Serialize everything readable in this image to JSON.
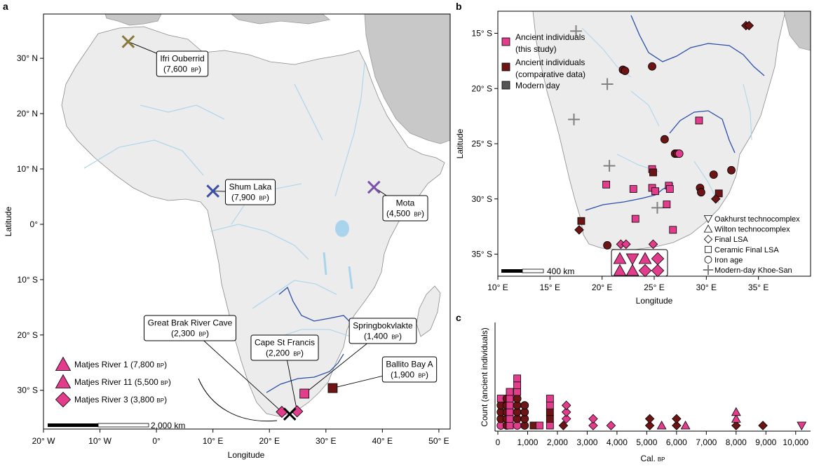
{
  "panels": {
    "a": {
      "letter": "a",
      "xlabel": "Longitude",
      "ylabel": "Latitude",
      "scale_label": "2,000 km"
    },
    "b": {
      "letter": "b",
      "xlabel": "Longitude",
      "ylabel": "Latitude",
      "scale_label": "400 km"
    },
    "c": {
      "letter": "c",
      "xlabel": "Cal.",
      "xlabel_unit": "BP",
      "ylabel": "Count (ancient individuals)"
    }
  },
  "colors": {
    "pink": "#e23c8c",
    "maroon": "#6e1414",
    "brown": "#7a4646",
    "olive": "#8a7a3a",
    "blue": "#3c4ea2",
    "purple": "#7a52a8",
    "gray": "#808080",
    "land": "#ececec",
    "landDark": "#c8c8c8",
    "water": "#a9d4ec",
    "river": "#2a4fa8"
  },
  "chart_data": [
    {
      "panel": "a",
      "type": "scatter",
      "xlabel": "Longitude",
      "ylabel": "Latitude",
      "xlim": [
        -20,
        52
      ],
      "ylim": [
        -37,
        38
      ],
      "xticks": [
        -20,
        -10,
        0,
        10,
        20,
        30,
        40,
        50
      ],
      "xtick_labels": [
        "20° W",
        "10° W",
        "0°",
        "10° E",
        "20° E",
        "30° E",
        "40° E",
        "50° E"
      ],
      "yticks": [
        30,
        20,
        10,
        0,
        -10,
        -20,
        -30
      ],
      "ytick_labels": [
        "30° N",
        "20° N",
        "10° N",
        "0°",
        "10° S",
        "20° S",
        "30° S"
      ],
      "sites": [
        {
          "name": "Ifri Ouberrid",
          "age": "7,600",
          "unit": "BP",
          "lon": -5,
          "lat": 33,
          "marker": "cross",
          "color": "#8a7a3a"
        },
        {
          "name": "Shum Laka",
          "age": "7,900",
          "unit": "BP",
          "lon": 10,
          "lat": 6,
          "marker": "cross",
          "color": "#3c4ea2"
        },
        {
          "name": "Mota",
          "age": "4,500",
          "unit": "BP",
          "lon": 38.5,
          "lat": 6.7,
          "marker": "cross",
          "color": "#7a52a8"
        },
        {
          "name": "Great Brak River Cave",
          "age": "2,300",
          "unit": "BP",
          "lon": 22.2,
          "lat": -33.9,
          "marker": "diamond",
          "color": "#e23c8c"
        },
        {
          "name": "Cape St Francis",
          "age": "2,200",
          "unit": "BP",
          "lon": 24.9,
          "lat": -33.8,
          "marker": "diamond",
          "color": "#e23c8c"
        },
        {
          "name": "Springbokvlakte",
          "age": "1,400",
          "unit": "BP",
          "lon": 26.2,
          "lat": -30.6,
          "marker": "square",
          "color": "#e23c8c"
        },
        {
          "name": "Ballito Bay A",
          "age": "1,900",
          "unit": "BP",
          "lon": 31.2,
          "lat": -29.6,
          "marker": "square",
          "color": "#6e1414"
        }
      ],
      "black_cross": {
        "lon": 23.6,
        "lat": -34.3
      },
      "legend": [
        {
          "label": "Matjes River 1 (7,800 ",
          "unit": "BP",
          "close": ")",
          "marker": "triangle"
        },
        {
          "label": "Matjes River 11 (5,500 ",
          "unit": "BP",
          "close": ")",
          "marker": "triangle"
        },
        {
          "label": "Matjes River 3 (3,800 ",
          "unit": "BP",
          "close": ")",
          "marker": "diamond"
        }
      ]
    },
    {
      "panel": "b",
      "type": "scatter",
      "xlabel": "Longitude",
      "ylabel": "Latitude",
      "xlim": [
        10,
        40
      ],
      "ylim": [
        -37,
        -13
      ],
      "xticks": [
        10,
        15,
        20,
        25,
        30,
        35
      ],
      "xtick_labels": [
        "10° E",
        "15° E",
        "20° E",
        "25° E",
        "30° E",
        "35° E"
      ],
      "yticks": [
        -15,
        -20,
        -25,
        -30,
        -35
      ],
      "ytick_labels": [
        "15° S",
        "20° S",
        "25° S",
        "30° S",
        "35° S"
      ],
      "legend_top": [
        {
          "label": "Ancient individuals",
          "label2": "(this study)",
          "color": "#e23c8c"
        },
        {
          "label": "Ancient individuals",
          "label2": "(comparative data)",
          "color": "#6e1414"
        },
        {
          "label": "Modern day",
          "label2": "",
          "color": "#555555"
        }
      ],
      "legend_shapes": [
        {
          "label": "Oakhurst technocomplex",
          "marker": "triangle-down"
        },
        {
          "label": "Wilton technocomplex",
          "marker": "triangle"
        },
        {
          "label": "Final LSA",
          "marker": "diamond"
        },
        {
          "label": "Ceramic Final LSA",
          "marker": "square"
        },
        {
          "label": "Iron age",
          "marker": "circle"
        },
        {
          "label": "Modern-day Khoe-San",
          "marker": "plus"
        }
      ],
      "points": [
        {
          "lon": 17.5,
          "lat": -14.8,
          "marker": "plus",
          "group": "modern"
        },
        {
          "lon": 20.5,
          "lat": -19.6,
          "marker": "plus",
          "group": "modern"
        },
        {
          "lon": 17.3,
          "lat": -22.8,
          "marker": "plus",
          "group": "modern"
        },
        {
          "lon": 20.7,
          "lat": -27.0,
          "marker": "plus",
          "group": "modern"
        },
        {
          "lon": 25.3,
          "lat": -30.8,
          "marker": "plus",
          "group": "modern"
        },
        {
          "lon": 33.8,
          "lat": -14.3,
          "marker": "diamond",
          "group": "comparative"
        },
        {
          "lon": 34.1,
          "lat": -14.3,
          "marker": "diamond",
          "group": "comparative"
        },
        {
          "lon": 22.0,
          "lat": -18.3,
          "marker": "circle",
          "group": "comparative"
        },
        {
          "lon": 22.2,
          "lat": -18.4,
          "marker": "circle",
          "group": "comparative"
        },
        {
          "lon": 24.8,
          "lat": -18.0,
          "marker": "circle",
          "group": "comparative"
        },
        {
          "lon": 29.3,
          "lat": -22.9,
          "marker": "square",
          "group": "study"
        },
        {
          "lon": 26.0,
          "lat": -24.6,
          "marker": "circle",
          "group": "comparative"
        },
        {
          "lon": 27.0,
          "lat": -25.9,
          "marker": "circle",
          "group": "comparative"
        },
        {
          "lon": 27.2,
          "lat": -25.9,
          "marker": "circle",
          "group": "comparative"
        },
        {
          "lon": 27.4,
          "lat": -25.9,
          "marker": "circle",
          "group": "study"
        },
        {
          "lon": 24.8,
          "lat": -27.3,
          "marker": "square",
          "group": "study"
        },
        {
          "lon": 24.9,
          "lat": -27.6,
          "marker": "square",
          "group": "comparative"
        },
        {
          "lon": 32.4,
          "lat": -27.4,
          "marker": "circle",
          "group": "comparative"
        },
        {
          "lon": 30.7,
          "lat": -27.8,
          "marker": "circle",
          "group": "comparative"
        },
        {
          "lon": 20.4,
          "lat": -28.7,
          "marker": "square",
          "group": "study"
        },
        {
          "lon": 23.0,
          "lat": -29.1,
          "marker": "square",
          "group": "study"
        },
        {
          "lon": 24.8,
          "lat": -29.0,
          "marker": "square",
          "group": "study"
        },
        {
          "lon": 25.1,
          "lat": -29.3,
          "marker": "square",
          "group": "study"
        },
        {
          "lon": 26.4,
          "lat": -28.8,
          "marker": "square",
          "group": "study"
        },
        {
          "lon": 26.5,
          "lat": -29.1,
          "marker": "square",
          "group": "study"
        },
        {
          "lon": 29.4,
          "lat": -29.0,
          "marker": "circle",
          "group": "comparative"
        },
        {
          "lon": 29.5,
          "lat": -29.4,
          "marker": "circle",
          "group": "comparative"
        },
        {
          "lon": 31.2,
          "lat": -29.5,
          "marker": "square",
          "group": "comparative"
        },
        {
          "lon": 30.9,
          "lat": -30.0,
          "marker": "diamond",
          "group": "comparative"
        },
        {
          "lon": 26.2,
          "lat": -30.5,
          "marker": "square",
          "group": "study"
        },
        {
          "lon": 23.2,
          "lat": -31.8,
          "marker": "square",
          "group": "study"
        },
        {
          "lon": 18.0,
          "lat": -32.0,
          "marker": "square",
          "group": "comparative"
        },
        {
          "lon": 17.8,
          "lat": -32.8,
          "marker": "diamond",
          "group": "comparative"
        },
        {
          "lon": 26.8,
          "lat": -32.8,
          "marker": "square",
          "group": "study"
        },
        {
          "lon": 20.5,
          "lat": -34.2,
          "marker": "circle",
          "group": "comparative"
        },
        {
          "lon": 21.8,
          "lat": -34.1,
          "marker": "diamond",
          "group": "study"
        },
        {
          "lon": 22.3,
          "lat": -34.1,
          "marker": "diamond",
          "group": "study"
        },
        {
          "lon": 24.9,
          "lat": -34.1,
          "marker": "diamond",
          "group": "study"
        }
      ],
      "matjes_inset": [
        {
          "marker": "triangle",
          "row": 1,
          "col": 1
        },
        {
          "marker": "triangle-down",
          "row": 1,
          "col": 2
        },
        {
          "marker": "triangle",
          "row": 1,
          "col": 3
        },
        {
          "marker": "diamond",
          "row": 1,
          "col": 4
        },
        {
          "marker": "triangle",
          "row": 2,
          "col": 1
        },
        {
          "marker": "triangle",
          "row": 2,
          "col": 2
        },
        {
          "marker": "diamond",
          "row": 2,
          "col": 3
        },
        {
          "marker": "diamond",
          "row": 2,
          "col": 4
        }
      ]
    },
    {
      "panel": "c",
      "type": "scatter",
      "xlabel": "Cal. BP",
      "ylabel": "Count (ancient individuals)",
      "xlim": [
        0,
        10500
      ],
      "xticks": [
        0,
        1000,
        2000,
        3000,
        4000,
        5000,
        6000,
        7000,
        8000,
        9000,
        10000
      ],
      "xtick_labels": [
        "0",
        "1,000",
        "2,000",
        "3,000",
        "4,000",
        "5,000",
        "6,000",
        "7,000",
        "8,000",
        "9,000",
        "10,000"
      ],
      "points": [
        {
          "x": 100,
          "count": 1,
          "marker": "circle",
          "group": "study"
        },
        {
          "x": 100,
          "count": 2,
          "marker": "circle",
          "group": "comparative"
        },
        {
          "x": 100,
          "count": 3,
          "marker": "circle",
          "group": "comparative"
        },
        {
          "x": 100,
          "count": 4,
          "marker": "circle",
          "group": "comparative"
        },
        {
          "x": 100,
          "count": 5,
          "marker": "square",
          "group": "study"
        },
        {
          "x": 300,
          "count": 1,
          "marker": "circle",
          "group": "comparative"
        },
        {
          "x": 300,
          "count": 2,
          "marker": "circle",
          "group": "comparative"
        },
        {
          "x": 300,
          "count": 3,
          "marker": "circle",
          "group": "comparative"
        },
        {
          "x": 300,
          "count": 4,
          "marker": "circle",
          "group": "comparative"
        },
        {
          "x": 300,
          "count": 5,
          "marker": "circle",
          "group": "comparative"
        },
        {
          "x": 400,
          "count": 1,
          "marker": "square",
          "group": "study"
        },
        {
          "x": 400,
          "count": 2,
          "marker": "square",
          "group": "study"
        },
        {
          "x": 400,
          "count": 3,
          "marker": "square",
          "group": "study"
        },
        {
          "x": 400,
          "count": 4,
          "marker": "square",
          "group": "study"
        },
        {
          "x": 400,
          "count": 5,
          "marker": "square",
          "group": "study"
        },
        {
          "x": 400,
          "count": 6,
          "marker": "square",
          "group": "study"
        },
        {
          "x": 650,
          "count": 1,
          "marker": "circle",
          "group": "study"
        },
        {
          "x": 650,
          "count": 2,
          "marker": "circle",
          "group": "comparative"
        },
        {
          "x": 650,
          "count": 3,
          "marker": "circle",
          "group": "comparative"
        },
        {
          "x": 650,
          "count": 4,
          "marker": "circle",
          "group": "comparative"
        },
        {
          "x": 650,
          "count": 5,
          "marker": "circle",
          "group": "comparative"
        },
        {
          "x": 650,
          "count": 6,
          "marker": "square",
          "group": "study"
        },
        {
          "x": 650,
          "count": 7,
          "marker": "square",
          "group": "study"
        },
        {
          "x": 650,
          "count": 8,
          "marker": "square",
          "group": "study"
        },
        {
          "x": 900,
          "count": 1,
          "marker": "circle",
          "group": "comparative"
        },
        {
          "x": 900,
          "count": 2,
          "marker": "circle",
          "group": "comparative"
        },
        {
          "x": 900,
          "count": 3,
          "marker": "circle",
          "group": "comparative"
        },
        {
          "x": 900,
          "count": 4,
          "marker": "circle",
          "group": "comparative"
        },
        {
          "x": 1200,
          "count": 1,
          "marker": "square",
          "group": "comparative"
        },
        {
          "x": 1400,
          "count": 1,
          "marker": "square",
          "group": "study"
        },
        {
          "x": 1750,
          "count": 1,
          "marker": "square",
          "group": "study"
        },
        {
          "x": 1750,
          "count": 2,
          "marker": "square",
          "group": "comparative"
        },
        {
          "x": 1750,
          "count": 3,
          "marker": "square",
          "group": "comparative"
        },
        {
          "x": 1750,
          "count": 4,
          "marker": "square",
          "group": "study"
        },
        {
          "x": 1750,
          "count": 5,
          "marker": "square",
          "group": "study"
        },
        {
          "x": 2200,
          "count": 1,
          "marker": "diamond",
          "group": "comparative"
        },
        {
          "x": 2300,
          "count": 2,
          "marker": "diamond",
          "group": "study"
        },
        {
          "x": 2300,
          "count": 3,
          "marker": "diamond",
          "group": "study"
        },
        {
          "x": 2300,
          "count": 4,
          "marker": "diamond",
          "group": "study"
        },
        {
          "x": 3200,
          "count": 1,
          "marker": "diamond",
          "group": "study"
        },
        {
          "x": 3200,
          "count": 2,
          "marker": "diamond",
          "group": "study"
        },
        {
          "x": 3800,
          "count": 1,
          "marker": "diamond",
          "group": "study"
        },
        {
          "x": 5100,
          "count": 1,
          "marker": "diamond",
          "group": "comparative"
        },
        {
          "x": 5100,
          "count": 2,
          "marker": "diamond",
          "group": "comparative"
        },
        {
          "x": 5500,
          "count": 1,
          "marker": "triangle",
          "group": "study"
        },
        {
          "x": 6000,
          "count": 1,
          "marker": "diamond",
          "group": "comparative"
        },
        {
          "x": 6000,
          "count": 2,
          "marker": "diamond",
          "group": "comparative"
        },
        {
          "x": 6300,
          "count": 1,
          "marker": "triangle",
          "group": "study"
        },
        {
          "x": 8000,
          "count": 1,
          "marker": "diamond",
          "group": "comparative"
        },
        {
          "x": 8000,
          "count": 2,
          "marker": "triangle",
          "group": "study"
        },
        {
          "x": 8000,
          "count": 3,
          "marker": "triangle",
          "group": "study"
        },
        {
          "x": 8900,
          "count": 1,
          "marker": "diamond",
          "group": "comparative"
        },
        {
          "x": 10200,
          "count": 1,
          "marker": "triangle-down",
          "group": "study"
        }
      ]
    }
  ]
}
